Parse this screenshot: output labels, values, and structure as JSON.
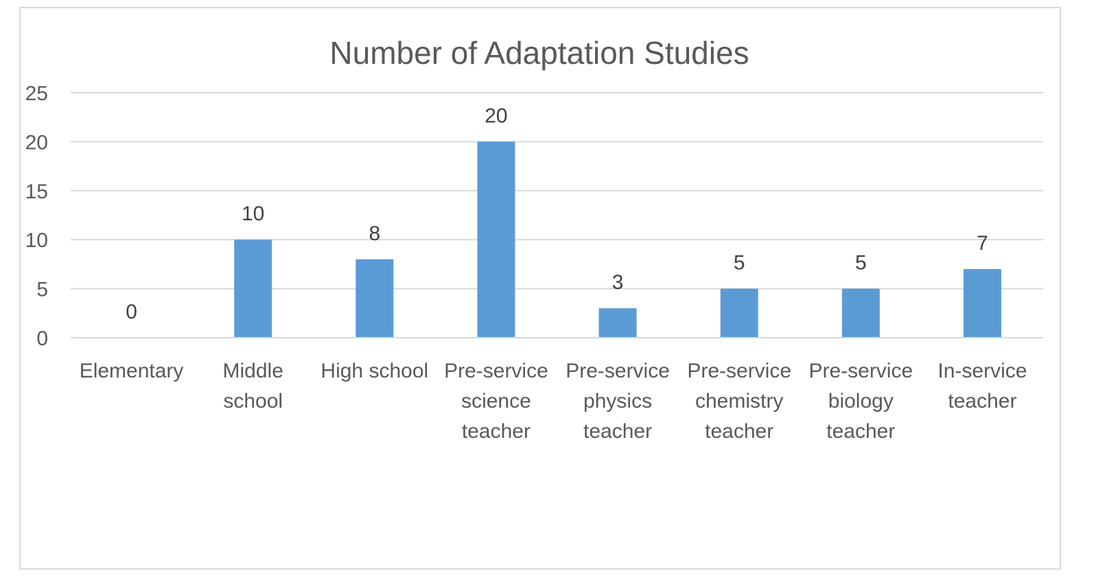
{
  "chart_data": {
    "type": "bar",
    "title": "Number of Adaptation Studies",
    "xlabel": "",
    "ylabel": "",
    "ylim": [
      0,
      25
    ],
    "yticks": [
      0,
      5,
      10,
      15,
      20,
      25
    ],
    "grid": true,
    "legend": "none",
    "bar_color": "#5b9bd5",
    "categories": [
      [
        "Elementary"
      ],
      [
        "Middle",
        "school"
      ],
      [
        "High school"
      ],
      [
        "Pre-service",
        "science",
        "teacher"
      ],
      [
        "Pre-service",
        "physics",
        "teacher"
      ],
      [
        "Pre-service",
        "chemistry",
        "teacher"
      ],
      [
        "Pre-service",
        "biology",
        "teacher"
      ],
      [
        "In-service",
        "teacher"
      ]
    ],
    "values": [
      0,
      10,
      8,
      20,
      3,
      5,
      5,
      7
    ]
  }
}
